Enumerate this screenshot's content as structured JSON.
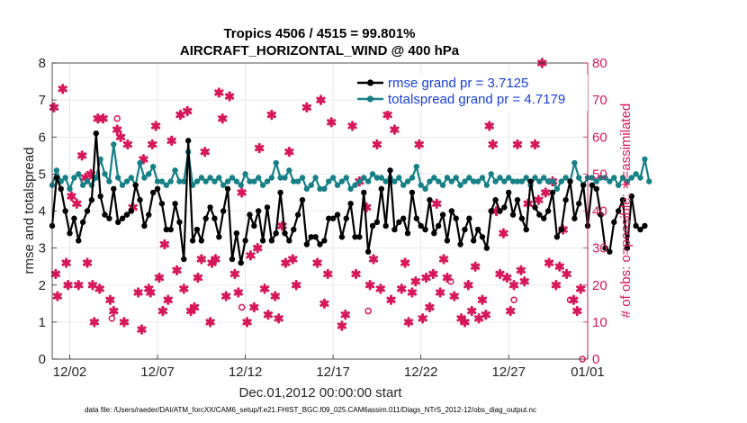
{
  "chart_data": {
    "type": "line",
    "title": "Tropics 4506 / 4515 = 99.801%",
    "subtitle": "AIRCRAFT_HORIZONTAL_WIND @ 400 hPa",
    "xlabel": "Dec.01,2012 00:00:00 start",
    "ylabel": "rmse and totalspread",
    "y2label": "# of obs: o=possible; ∗=assimilated",
    "footnote": "data file: /Users/raeder/DAI/ATM_forcXX/CAM6_setup/f.e21.FHIST_BGC.f09_025.CAM6assim.011/Diags_NTrS_2012-12/obs_diag_output.nc",
    "xlim": [
      0.5,
      31.0
    ],
    "ylim": [
      0,
      8
    ],
    "y2lim": [
      0,
      80
    ],
    "x_ticks": [
      1.5,
      6.5,
      11.5,
      16.5,
      21.5,
      26.5,
      31.0
    ],
    "x_tick_labels": [
      "12/02",
      "12/07",
      "12/12",
      "12/17",
      "12/22",
      "12/27",
      "01/01"
    ],
    "y_ticks": [
      0,
      1,
      2,
      3,
      4,
      5,
      6,
      7,
      8
    ],
    "y2_ticks": [
      0,
      10,
      20,
      30,
      40,
      50,
      60,
      70,
      80
    ],
    "grid": true,
    "legend_position": "top-right",
    "x_step": 0.25,
    "series": [
      {
        "name": "rmse",
        "legend": "rmse grand pr = 3.7125",
        "axis": "left",
        "color": "#000000",
        "values": [
          3.6,
          4.9,
          4.6,
          4.0,
          3.4,
          3.8,
          3.2,
          3.7,
          4.0,
          4.3,
          6.1,
          4.4,
          3.9,
          3.8,
          4.6,
          3.7,
          3.8,
          3.9,
          4.0,
          4.7,
          4.3,
          3.6,
          3.9,
          4.5,
          4.6,
          4.2,
          3.5,
          3.5,
          4.2,
          3.7,
          2.7,
          5.9,
          3.2,
          3.5,
          3.2,
          3.8,
          4.1,
          3.8,
          3.3,
          4.0,
          4.6,
          2.7,
          3.4,
          2.6,
          3.2,
          3.9,
          3.6,
          4.0,
          3.2,
          4.1,
          3.2,
          3.4,
          4.5,
          3.4,
          3.2,
          3.5,
          3.9,
          4.3,
          3.1,
          3.3,
          3.3,
          3.1,
          3.2,
          3.8,
          3.8,
          3.9,
          3.3,
          3.8,
          4.2,
          3.3,
          3.3,
          4.5,
          2.9,
          3.6,
          3.7,
          4.6,
          3.6,
          5.1,
          3.5,
          3.7,
          3.8,
          3.4,
          4.5,
          3.8,
          3.6,
          3.5,
          4.3,
          3.4,
          3.6,
          3.9,
          3.2,
          4.0,
          3.8,
          3.1,
          3.5,
          3.8,
          3.2,
          3.5,
          3.3,
          3.0,
          4.0,
          4.3,
          4.0,
          4.1,
          4.5,
          3.9,
          4.3,
          3.8,
          3.5,
          4.8,
          4.1,
          3.9,
          3.8,
          4.0,
          4.5,
          3.3,
          3.5,
          4.3,
          4.8,
          3.8,
          4.2,
          4.7,
          3.6,
          4.7,
          4.6,
          3.9,
          3.0,
          2.9,
          3.7,
          4.0,
          4.3,
          3.0,
          4.4,
          3.6,
          3.5,
          3.6
        ]
      },
      {
        "name": "totalspread",
        "legend": "totalspread grand pr = 4.7179",
        "axis": "left",
        "color": "#168086",
        "values": [
          4.7,
          5.1,
          4.8,
          4.9,
          4.6,
          4.9,
          5.0,
          4.7,
          4.8,
          4.7,
          4.9,
          5.4,
          5.0,
          4.8,
          5.8,
          4.9,
          4.7,
          4.8,
          4.9,
          4.7,
          5.3,
          4.9,
          5.0,
          5.2,
          4.8,
          4.8,
          4.7,
          4.8,
          5.1,
          4.8,
          4.8,
          5.6,
          4.7,
          4.8,
          4.9,
          4.8,
          4.9,
          4.8,
          4.9,
          4.7,
          4.8,
          4.9,
          4.8,
          4.7,
          5.0,
          4.8,
          4.8,
          4.9,
          4.7,
          4.8,
          4.9,
          5.3,
          4.9,
          4.9,
          5.1,
          4.8,
          4.8,
          4.9,
          4.6,
          4.7,
          4.9,
          4.6,
          4.6,
          4.8,
          4.9,
          4.7,
          4.8,
          4.9,
          4.6,
          4.7,
          4.8,
          4.9,
          4.8,
          5.0,
          4.9,
          4.9,
          4.8,
          4.9,
          4.8,
          4.9,
          4.7,
          4.8,
          4.9,
          5.2,
          4.7,
          4.6,
          4.8,
          4.9,
          4.8,
          4.7,
          4.9,
          4.8,
          4.9,
          4.7,
          4.8,
          4.9,
          4.8,
          4.8,
          4.9,
          4.7,
          5.0,
          4.8,
          4.9,
          4.8,
          4.9,
          4.8,
          4.8,
          4.8,
          4.9,
          4.7,
          4.9,
          4.8,
          4.9,
          4.8,
          4.8,
          4.6,
          4.8,
          4.9,
          4.8,
          5.3,
          4.9,
          4.7,
          4.9,
          4.9,
          4.8,
          4.9,
          4.9,
          4.8,
          4.9,
          4.7,
          4.9,
          4.8,
          4.9,
          5.0,
          4.9,
          5.4,
          4.8
        ]
      }
    ],
    "obs_assimilated": {
      "axis": "right",
      "color": "#d6175a",
      "marker": "asterisk",
      "points": [
        [
          0.6,
          68
        ],
        [
          0.7,
          23
        ],
        [
          0.8,
          17
        ],
        [
          1.1,
          73
        ],
        [
          1.3,
          26
        ],
        [
          1.4,
          20
        ],
        [
          1.6,
          44
        ],
        [
          1.9,
          42
        ],
        [
          2.0,
          20
        ],
        [
          2.2,
          55
        ],
        [
          2.4,
          49
        ],
        [
          2.5,
          26
        ],
        [
          2.7,
          50
        ],
        [
          2.8,
          20
        ],
        [
          2.9,
          10
        ],
        [
          3.1,
          65
        ],
        [
          3.2,
          19
        ],
        [
          3.4,
          65
        ],
        [
          3.8,
          16
        ],
        [
          4.0,
          13
        ],
        [
          4.2,
          62
        ],
        [
          4.4,
          60
        ],
        [
          4.6,
          10
        ],
        [
          4.8,
          58
        ],
        [
          5.1,
          41
        ],
        [
          5.4,
          18
        ],
        [
          5.6,
          8
        ],
        [
          5.7,
          54
        ],
        [
          6.0,
          19
        ],
        [
          6.1,
          18
        ],
        [
          6.2,
          58
        ],
        [
          6.4,
          63
        ],
        [
          6.6,
          22
        ],
        [
          6.8,
          13
        ],
        [
          6.9,
          31
        ],
        [
          7.1,
          16
        ],
        [
          7.3,
          59
        ],
        [
          7.6,
          24
        ],
        [
          7.8,
          66
        ],
        [
          8.0,
          19
        ],
        [
          8.2,
          67
        ],
        [
          8.4,
          13
        ],
        [
          8.6,
          14
        ],
        [
          8.8,
          22
        ],
        [
          9.0,
          27
        ],
        [
          9.2,
          56
        ],
        [
          9.5,
          10
        ],
        [
          9.6,
          26
        ],
        [
          9.8,
          27
        ],
        [
          10.0,
          72
        ],
        [
          10.2,
          65
        ],
        [
          10.4,
          17
        ],
        [
          10.6,
          71
        ],
        [
          10.9,
          23
        ],
        [
          11.1,
          18
        ],
        [
          11.3,
          45
        ],
        [
          11.6,
          10
        ],
        [
          11.8,
          28
        ],
        [
          12.0,
          14
        ],
        [
          12.2,
          30
        ],
        [
          12.3,
          57
        ],
        [
          12.6,
          19
        ],
        [
          12.8,
          12
        ],
        [
          13.0,
          66
        ],
        [
          13.2,
          17
        ],
        [
          13.4,
          11
        ],
        [
          13.6,
          36
        ],
        [
          13.8,
          26
        ],
        [
          14.0,
          56
        ],
        [
          14.2,
          27
        ],
        [
          14.4,
          20
        ],
        [
          15.0,
          68
        ],
        [
          15.6,
          26
        ],
        [
          15.8,
          70
        ],
        [
          16.0,
          15
        ],
        [
          16.2,
          23
        ],
        [
          16.4,
          64
        ],
        [
          17.0,
          9
        ],
        [
          17.2,
          12
        ],
        [
          17.6,
          63
        ],
        [
          17.8,
          23
        ],
        [
          18.0,
          48
        ],
        [
          18.4,
          41
        ],
        [
          18.6,
          20
        ],
        [
          18.8,
          27
        ],
        [
          19.0,
          58
        ],
        [
          19.2,
          19
        ],
        [
          19.6,
          66
        ],
        [
          19.8,
          16
        ],
        [
          20.0,
          62
        ],
        [
          20.4,
          19
        ],
        [
          20.6,
          26
        ],
        [
          20.8,
          10
        ],
        [
          21.0,
          18
        ],
        [
          21.2,
          21
        ],
        [
          21.4,
          58
        ],
        [
          21.6,
          11
        ],
        [
          21.8,
          22
        ],
        [
          22.0,
          14
        ],
        [
          22.2,
          23
        ],
        [
          22.4,
          42
        ],
        [
          22.6,
          18
        ],
        [
          22.8,
          27
        ],
        [
          23.0,
          22
        ],
        [
          23.4,
          17
        ],
        [
          23.8,
          11
        ],
        [
          24.0,
          10
        ],
        [
          24.2,
          20
        ],
        [
          24.4,
          13
        ],
        [
          24.6,
          25
        ],
        [
          24.8,
          11
        ],
        [
          25.0,
          16
        ],
        [
          25.2,
          12
        ],
        [
          25.4,
          63
        ],
        [
          25.6,
          58
        ],
        [
          25.8,
          40
        ],
        [
          26.0,
          23
        ],
        [
          26.2,
          34
        ],
        [
          26.4,
          22
        ],
        [
          26.6,
          13
        ],
        [
          26.8,
          20
        ],
        [
          27.0,
          58
        ],
        [
          27.2,
          24
        ],
        [
          27.4,
          21
        ],
        [
          27.6,
          42
        ],
        [
          28.0,
          58
        ],
        [
          28.2,
          43
        ],
        [
          28.4,
          80
        ],
        [
          28.6,
          45
        ],
        [
          28.8,
          26
        ],
        [
          29.0,
          48
        ],
        [
          29.2,
          20
        ],
        [
          29.4,
          25
        ],
        [
          29.6,
          35
        ],
        [
          29.8,
          23
        ],
        [
          30.2,
          16
        ],
        [
          30.4,
          13
        ],
        [
          30.6,
          19
        ]
      ]
    },
    "obs_possible": {
      "axis": "right",
      "color": "#d6175a",
      "marker": "circle",
      "points": [
        [
          3.9,
          11
        ],
        [
          4.2,
          65
        ],
        [
          11.3,
          14
        ],
        [
          18.5,
          13
        ],
        [
          23.2,
          21
        ],
        [
          26.8,
          16
        ],
        [
          30.0,
          16
        ],
        [
          30.7,
          0
        ]
      ]
    }
  }
}
